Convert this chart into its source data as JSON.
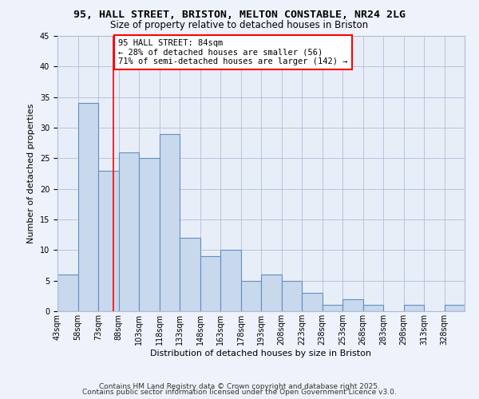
{
  "title": "95, HALL STREET, BRISTON, MELTON CONSTABLE, NR24 2LG",
  "subtitle": "Size of property relative to detached houses in Briston",
  "xlabel": "Distribution of detached houses by size in Briston",
  "ylabel": "Number of detached properties",
  "bin_edges": [
    43,
    58,
    73,
    88,
    103,
    118,
    133,
    148,
    163,
    178,
    193,
    208,
    223,
    238,
    253,
    268,
    283,
    298,
    313,
    328,
    343
  ],
  "bar_heights": [
    6,
    34,
    23,
    26,
    25,
    29,
    12,
    9,
    10,
    5,
    6,
    5,
    3,
    1,
    2,
    1,
    0,
    1,
    0,
    1
  ],
  "bar_color": "#c8d8ed",
  "bar_edge_color": "#6090c0",
  "bar_edge_width": 0.8,
  "red_line_x": 84,
  "ylim": [
    0,
    45
  ],
  "yticks": [
    0,
    5,
    10,
    15,
    20,
    25,
    30,
    35,
    40,
    45
  ],
  "annotation_box_text": "95 HALL STREET: 84sqm\n← 28% of detached houses are smaller (56)\n71% of semi-detached houses are larger (142) →",
  "bg_color": "#eef2fa",
  "plot_bg_color": "#e8eef8",
  "grid_color": "#b0bcd8",
  "footer_line1": "Contains HM Land Registry data © Crown copyright and database right 2025.",
  "footer_line2": "Contains public sector information licensed under the Open Government Licence v3.0.",
  "title_fontsize": 9.5,
  "subtitle_fontsize": 8.5,
  "axis_label_fontsize": 8,
  "tick_label_fontsize": 7,
  "annotation_fontsize": 7.5,
  "footer_fontsize": 6.5
}
